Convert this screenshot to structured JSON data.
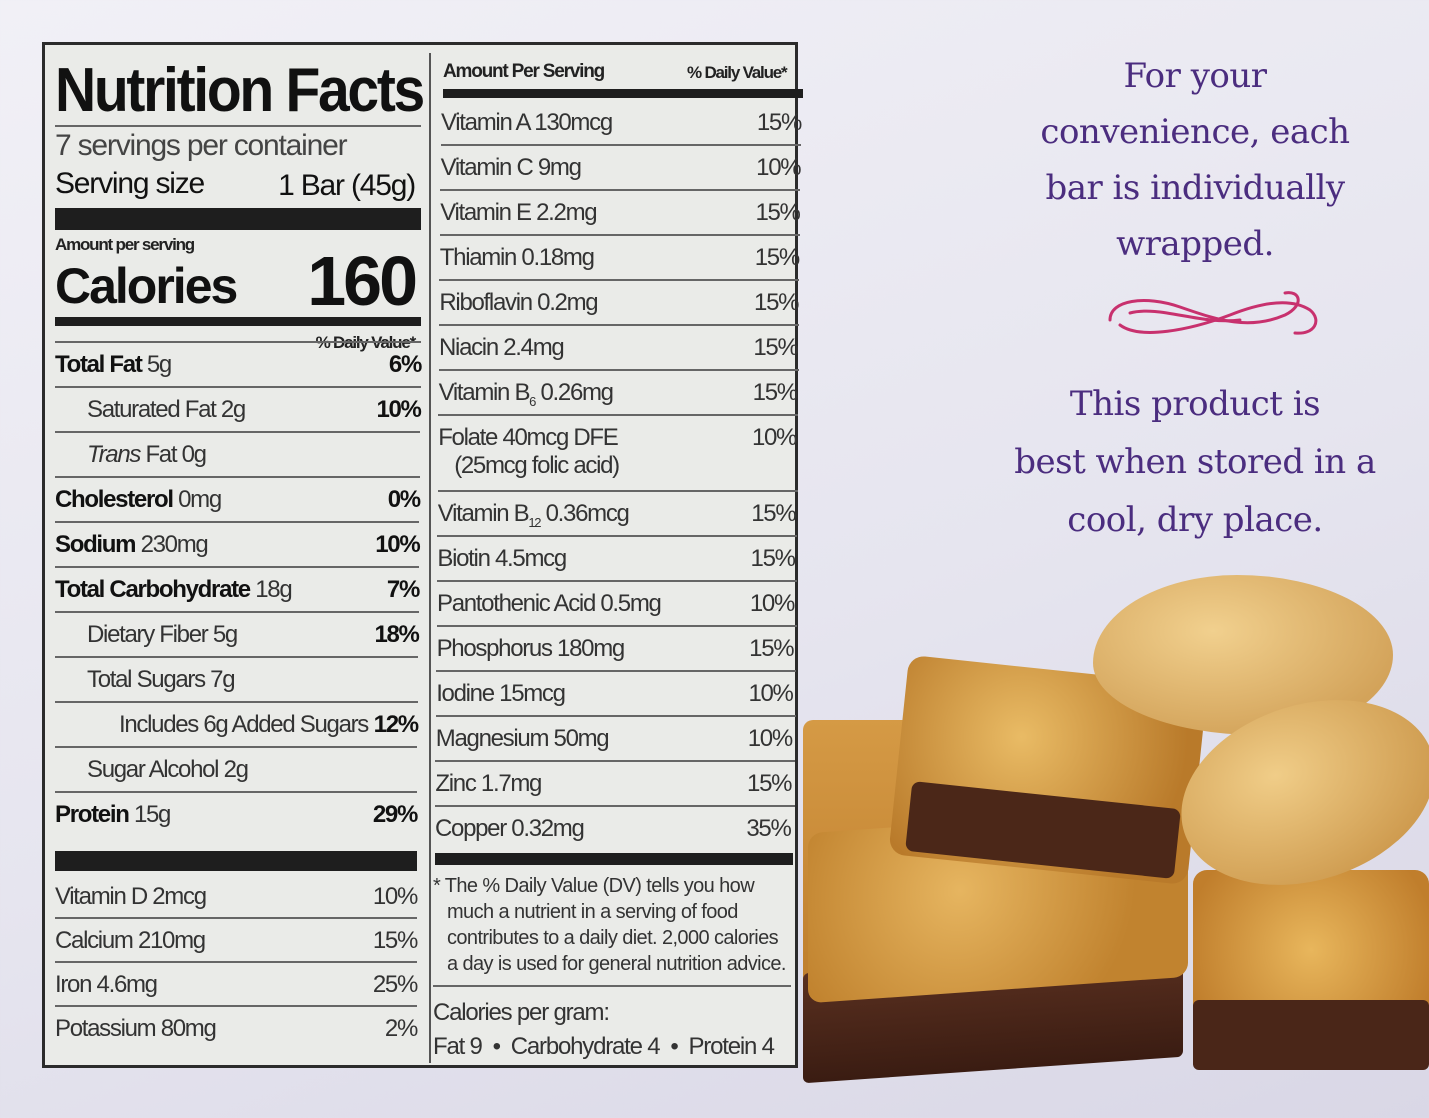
{
  "label": {
    "title": "Nutrition Facts",
    "servings": "7 servings per container",
    "serving_size_label": "Serving size",
    "serving_size_value": "1 Bar (45g)",
    "amount_per_serving": "Amount per serving",
    "calories_label": "Calories",
    "calories_value": "160",
    "dv_header": "% Daily Value*",
    "left_rows": [
      {
        "name": "Total Fat",
        "amount": " 5g",
        "dv": "6%",
        "bold": true,
        "indent": 0
      },
      {
        "name": "Saturated Fat 2g",
        "amount": "",
        "dv": "10%",
        "bold": false,
        "indent": 1
      },
      {
        "name": "Trans",
        "amount": " Fat 0g",
        "dv": "",
        "bold": false,
        "indent": 1,
        "italic": true
      },
      {
        "name": "Cholesterol",
        "amount": " 0mg",
        "dv": "0%",
        "bold": true,
        "indent": 0
      },
      {
        "name": "Sodium",
        "amount": " 230mg",
        "dv": "10%",
        "bold": true,
        "indent": 0
      },
      {
        "name": "Total Carbohydrate",
        "amount": " 18g",
        "dv": "7%",
        "bold": true,
        "indent": 0
      },
      {
        "name": "Dietary Fiber 5g",
        "amount": "",
        "dv": "18%",
        "bold": false,
        "indent": 1
      },
      {
        "name": "Total Sugars 7g",
        "amount": "",
        "dv": "",
        "bold": false,
        "indent": 1
      },
      {
        "name": "Includes 6g Added Sugars",
        "amount": "",
        "dv": "12%",
        "bold": false,
        "indent": 2
      },
      {
        "name": "Sugar Alcohol 2g",
        "amount": "",
        "dv": "",
        "bold": false,
        "indent": 1
      },
      {
        "name": "Protein",
        "amount": " 15g",
        "dv": "29%",
        "bold": true,
        "indent": 0
      }
    ],
    "left_vitamins": [
      {
        "name": "Vitamin D 2mcg",
        "dv": "10%"
      },
      {
        "name": "Calcium 210mg",
        "dv": "15%"
      },
      {
        "name": "Iron 4.6mg",
        "dv": "25%"
      },
      {
        "name": "Potassium 80mg",
        "dv": "2%"
      }
    ],
    "right_header_left": "Amount Per Serving",
    "right_header_right": "% Daily Value*",
    "right_rows": [
      {
        "name": "Vitamin A 130mcg",
        "dv": "15%"
      },
      {
        "name": "Vitamin C 9mg",
        "dv": "10%"
      },
      {
        "name": "Vitamin E 2.2mg",
        "dv": "15%"
      },
      {
        "name": "Thiamin 0.18mg",
        "dv": "15%"
      },
      {
        "name": "Riboflavin 0.2mg",
        "dv": "15%"
      },
      {
        "name": "Niacin 2.4mg",
        "dv": "15%"
      },
      {
        "name": "Vitamin B",
        "sub": "6",
        "amount": " 0.26mg",
        "dv": "15%"
      },
      {
        "name": "Folate 40mcg DFE",
        "line2": "(25mcg folic acid)",
        "dv": "10%"
      },
      {
        "name": "Vitamin B",
        "sub": "12",
        "amount": " 0.36mcg",
        "dv": "15%"
      },
      {
        "name": "Biotin 4.5mcg",
        "dv": "15%"
      },
      {
        "name": "Pantothenic Acid 0.5mg",
        "dv": "10%"
      },
      {
        "name": "Phosphorus 180mg",
        "dv": "15%"
      },
      {
        "name": "Iodine 15mcg",
        "dv": "10%"
      },
      {
        "name": "Magnesium 50mg",
        "dv": "10%"
      },
      {
        "name": "Zinc 1.7mg",
        "dv": "15%"
      },
      {
        "name": "Copper 0.32mg",
        "dv": "35%"
      }
    ],
    "footnote": [
      "* The % Daily Value (DV) tells you how",
      "much a nutrient in a serving of food",
      "contributes to a daily diet. 2,000 calories",
      "a day is used for general nutrition advice."
    ],
    "cal_per_gram_label": "Calories per gram:",
    "cal_per_gram": "Fat 9  •  Carbohydrate 4  •  Protein 4"
  },
  "side": {
    "message1": [
      "For your",
      "convenience, each",
      "bar is individually",
      "wrapped."
    ],
    "message2": [
      "This product is",
      "best when stored in a",
      "cool, dry place."
    ],
    "text_color": "#4b2d7f",
    "flourish_color": "#c8316e"
  }
}
